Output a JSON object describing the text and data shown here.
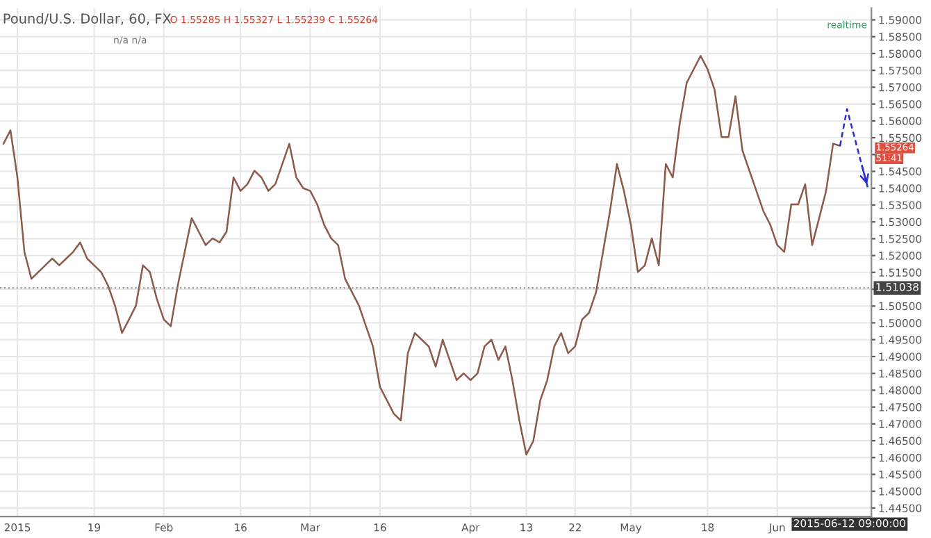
{
  "chart_data": {
    "type": "line",
    "categories": [
      null,
      null,
      "2015",
      null,
      null,
      null,
      null,
      null,
      null,
      null,
      null,
      null,
      null,
      "19",
      null,
      null,
      null,
      null,
      null,
      null,
      null,
      null,
      null,
      "Feb",
      null,
      null,
      null,
      null,
      null,
      null,
      null,
      null,
      null,
      null,
      "16",
      null,
      null,
      null,
      null,
      null,
      null,
      null,
      null,
      null,
      "Mar",
      null,
      null,
      null,
      null,
      null,
      null,
      null,
      null,
      null,
      "16",
      null,
      null,
      null,
      null,
      null,
      null,
      null,
      null,
      null,
      null,
      null,
      null,
      "Apr",
      null,
      null,
      null,
      null,
      null,
      null,
      null,
      "13",
      null,
      null,
      null,
      null,
      null,
      null,
      "22",
      null,
      null,
      null,
      null,
      null,
      null,
      null,
      "May",
      null,
      null,
      null,
      null,
      null,
      null,
      null,
      null,
      null,
      null,
      "18",
      null,
      null,
      null,
      null,
      null,
      null,
      null,
      null,
      null,
      "Jun",
      null,
      null,
      null,
      null,
      null,
      null,
      null,
      null,
      null,
      null,
      null,
      null,
      null
    ],
    "series": [
      {
        "color": "#8b5a4a",
        "line_style": "solid",
        "values": [
          1.5532,
          1.5572,
          1.5432,
          1.5211,
          1.5131,
          1.5151,
          1.5171,
          1.5191,
          1.5171,
          1.5191,
          1.5211,
          1.5239,
          1.5191,
          1.5171,
          1.5151,
          1.5111,
          1.5051,
          1.497,
          1.501,
          1.5051,
          1.5171,
          1.5151,
          1.5071,
          1.501,
          1.499,
          1.5111,
          1.5211,
          1.5311,
          1.5271,
          1.5231,
          1.5251,
          1.5239,
          1.5271,
          1.5432,
          1.5392,
          1.5412,
          1.5452,
          1.5432,
          1.5392,
          1.5412,
          1.5472,
          1.5532,
          1.5432,
          1.54,
          1.5392,
          1.5352,
          1.5291,
          1.5251,
          1.5231,
          1.5131,
          1.5091,
          1.5051,
          1.499,
          1.493,
          1.481,
          1.477,
          1.473,
          1.471,
          1.491,
          1.497,
          1.495,
          1.493,
          1.487,
          1.495,
          1.489,
          1.483,
          1.485,
          1.483,
          1.485,
          1.493,
          1.495,
          1.489,
          1.493,
          1.483,
          1.471,
          1.4609,
          1.4649,
          1.477,
          1.483,
          1.493,
          1.497,
          1.491,
          1.493,
          1.501,
          1.503,
          1.5091,
          1.5211,
          1.5332,
          1.5472,
          1.5392,
          1.5291,
          1.5151,
          1.5171,
          1.5251,
          1.5171,
          1.5472,
          1.5432,
          1.5592,
          1.5713,
          1.5753,
          1.5793,
          1.5753,
          1.5693,
          1.5552,
          1.5552,
          1.5673,
          1.5512,
          1.5452,
          1.5392,
          1.5332,
          1.5291,
          1.5231,
          1.5211,
          1.5352,
          1.5352,
          1.5412,
          1.5231,
          1.5311,
          1.5392,
          1.5532,
          1.5526,
          null,
          null,
          null,
          null
        ]
      },
      {
        "color": "#2b2bd0",
        "line_style": "dashed",
        "values": [
          null,
          null,
          null,
          null,
          null,
          null,
          null,
          null,
          null,
          null,
          null,
          null,
          null,
          null,
          null,
          null,
          null,
          null,
          null,
          null,
          null,
          null,
          null,
          null,
          null,
          null,
          null,
          null,
          null,
          null,
          null,
          null,
          null,
          null,
          null,
          null,
          null,
          null,
          null,
          null,
          null,
          null,
          null,
          null,
          null,
          null,
          null,
          null,
          null,
          null,
          null,
          null,
          null,
          null,
          null,
          null,
          null,
          null,
          null,
          null,
          null,
          null,
          null,
          null,
          null,
          null,
          null,
          null,
          null,
          null,
          null,
          null,
          null,
          null,
          null,
          null,
          null,
          null,
          null,
          null,
          null,
          null,
          null,
          null,
          null,
          null,
          null,
          null,
          null,
          null,
          null,
          null,
          null,
          null,
          null,
          null,
          null,
          null,
          null,
          null,
          null,
          null,
          null,
          null,
          null,
          null,
          null,
          null,
          null,
          null,
          null,
          null,
          null,
          null,
          null,
          null,
          null,
          null,
          null,
          null,
          1.5526,
          1.5635,
          1.5557,
          1.5478,
          1.54
        ]
      }
    ],
    "ylim": [
      1.4425,
      1.5935
    ],
    "yticks": [
      {
        "value": 1.445,
        "label": "1.44500"
      },
      {
        "value": 1.45,
        "label": "1.45000"
      },
      {
        "value": 1.455,
        "label": "1.45500"
      },
      {
        "value": 1.46,
        "label": "1.46000"
      },
      {
        "value": 1.465,
        "label": "1.46500"
      },
      {
        "value": 1.47,
        "label": "1.47000"
      },
      {
        "value": 1.475,
        "label": "1.47500"
      },
      {
        "value": 1.48,
        "label": "1.48000"
      },
      {
        "value": 1.485,
        "label": "1.48500"
      },
      {
        "value": 1.49,
        "label": "1.49000"
      },
      {
        "value": 1.495,
        "label": "1.49500"
      },
      {
        "value": 1.5,
        "label": "1.50000"
      },
      {
        "value": 1.505,
        "label": "1.50500"
      },
      {
        "value": 1.51,
        "label": null
      },
      {
        "value": 1.515,
        "label": "1.51500"
      },
      {
        "value": 1.52,
        "label": "1.52000"
      },
      {
        "value": 1.525,
        "label": "1.52500"
      },
      {
        "value": 1.53,
        "label": "1.53000"
      },
      {
        "value": 1.535,
        "label": "1.53500"
      },
      {
        "value": 1.54,
        "label": "1.54000"
      },
      {
        "value": 1.545,
        "label": "1.54500"
      },
      {
        "value": 1.55,
        "label": null
      },
      {
        "value": 1.555,
        "label": "1.55500"
      },
      {
        "value": 1.56,
        "label": "1.56000"
      },
      {
        "value": 1.565,
        "label": "1.56500"
      },
      {
        "value": 1.57,
        "label": "1.57000"
      },
      {
        "value": 1.575,
        "label": "1.57500"
      },
      {
        "value": 1.58,
        "label": "1.58000"
      },
      {
        "value": 1.585,
        "label": "1.58500"
      },
      {
        "value": 1.59,
        "label": "1.59000"
      }
    ],
    "grid": true,
    "ref_lines": [
      {
        "axis": "y",
        "value": 1.51038,
        "label": "1.51038",
        "color": "#9a9a9a",
        "line_style": "dotted"
      }
    ],
    "annotations": [
      "Pound/U.S. Dollar, 60, FX",
      "O 1.55285 H 1.55327 L 1.55239 C 1.55264",
      "n/a n/a",
      "realtime",
      "51:41",
      "2015-06-12 09:00:00",
      "1.55264"
    ]
  }
}
